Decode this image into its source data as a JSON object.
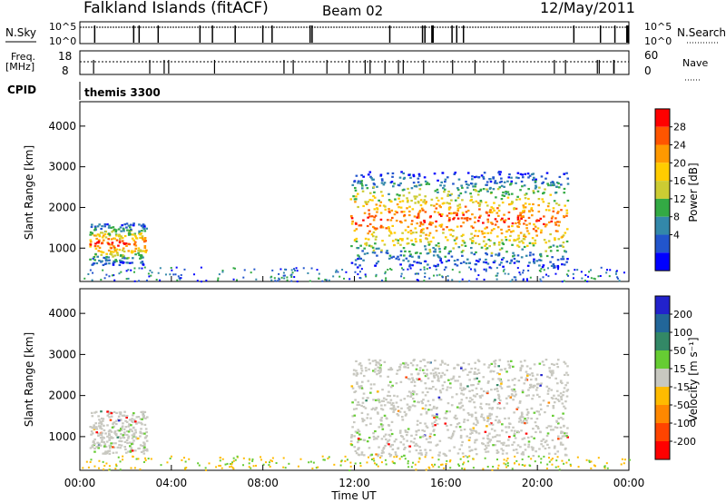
{
  "header": {
    "site": "Falkland Islands (fitACF)",
    "beam": "Beam 02",
    "date": "12/May/2011"
  },
  "panels": {
    "nsky_label": "N.Sky",
    "nsky_top_left": "10^5",
    "nsky_bottom_left": "10^0",
    "nsky_top_right": "10^5",
    "nsky_bottom_right": "10^0",
    "nsearch_label": "N.Search",
    "freq_label": "Freq.",
    "freq_unit": "[MHz]",
    "freq_top": "18",
    "freq_bottom": "8",
    "nave_top": "60",
    "nave_bottom": "0",
    "nave_label": "Nave",
    "cpid_label": "CPID",
    "cpid_value": "themis 3300"
  },
  "chart_data": [
    {
      "type": "heatmap",
      "name": "power",
      "ylabel": "Slant Range [km]",
      "xlabel": "",
      "colorbar_label": "Power [dB]",
      "colorbar_ticks": [
        "28",
        "24",
        "20",
        "16",
        "12",
        "8",
        "4"
      ],
      "colorbar_colors": [
        "#ff0000",
        "#ff5500",
        "#ff9900",
        "#ffcc00",
        "#cccc33",
        "#33aa44",
        "#3388aa",
        "#2255cc",
        "#0000ff"
      ],
      "yticks": [
        "1000",
        "2000",
        "3000",
        "4000"
      ],
      "ylim": [
        180,
        4600
      ],
      "regions": [
        {
          "t0": 0.4,
          "t1": 2.9,
          "r0": 600,
          "r1": 1650
        },
        {
          "t0": 11.8,
          "t1": 21.3,
          "r0": 550,
          "r1": 2900
        }
      ]
    },
    {
      "type": "heatmap",
      "name": "velocity",
      "ylabel": "Slant Range [km]",
      "xlabel": "Time UT",
      "colorbar_label": "Velocity [m s⁻¹]",
      "colorbar_ticks": [
        "200",
        "100",
        "50",
        "15",
        "-15",
        "-50",
        "-100",
        "-200"
      ],
      "colorbar_colors": [
        "#2222cc",
        "#226699",
        "#338866",
        "#66cc33",
        "#c8c8c0",
        "#ffbb00",
        "#ff8800",
        "#ff4400",
        "#ff0000"
      ],
      "yticks": [
        "1000",
        "2000",
        "3000",
        "4000"
      ],
      "ylim": [
        180,
        4600
      ],
      "xticks": [
        "00:00",
        "04:00",
        "08:00",
        "12:00",
        "16:00",
        "20:00",
        "00:00"
      ],
      "xlim": [
        0,
        24
      ],
      "regions": [
        {
          "t0": 0.4,
          "t1": 2.9,
          "r0": 600,
          "r1": 1650
        },
        {
          "t0": 11.8,
          "t1": 21.3,
          "r0": 550,
          "r1": 2900
        }
      ]
    }
  ]
}
